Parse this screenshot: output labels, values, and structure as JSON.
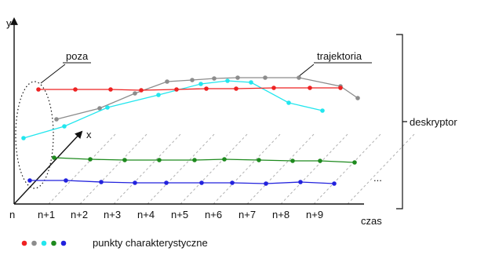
{
  "labels": {
    "y_axis": "y",
    "x_axis": "x",
    "time_axis": "czas",
    "pose": "poza",
    "trajectory": "trajektoria",
    "descriptor": "deskryptor",
    "ellipsis": "...",
    "legend": "punkty charakterystyczne"
  },
  "ticks": [
    "n",
    "n+1",
    "n+2",
    "n+3",
    "n+4",
    "n+5",
    "n+6",
    "n+7",
    "n+8",
    "n+9"
  ],
  "colors": {
    "red": "#ee2222",
    "gray": "#8c8c8c",
    "cyan": "#22e6ee",
    "green": "#1e8a1e",
    "blue": "#2222dd",
    "axis": "#111111",
    "grid": "#b0b0b0"
  },
  "legend_dots": [
    "red",
    "gray",
    "cyan",
    "green",
    "blue"
  ]
}
